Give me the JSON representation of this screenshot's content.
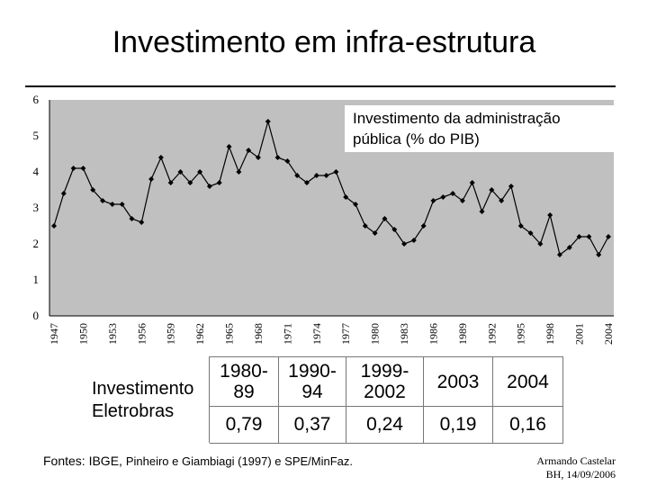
{
  "page": {
    "title": "Investimento em infra-estrutura"
  },
  "chart_data": {
    "type": "line",
    "title": "",
    "legend_text_line1": "Investimento da administração",
    "legend_text_line2": "pública (% do PIB)",
    "legend_placement": "top-right",
    "xlabel": "",
    "ylabel": "",
    "ylim": [
      0,
      6
    ],
    "yticks": [
      "0",
      "1",
      "2",
      "3",
      "4",
      "5",
      "6"
    ],
    "xticks": [
      "1947",
      "1950",
      "1953",
      "1956",
      "1959",
      "1962",
      "1965",
      "1968",
      "1971",
      "1974",
      "1977",
      "1980",
      "1983",
      "1986",
      "1989",
      "1992",
      "1995",
      "1998",
      "2001",
      "2004"
    ],
    "grid": false,
    "plot_background": "#c0c0c0",
    "line_color": "#000000",
    "x": [
      1947,
      1948,
      1949,
      1950,
      1951,
      1952,
      1953,
      1954,
      1955,
      1956,
      1957,
      1958,
      1959,
      1960,
      1961,
      1962,
      1963,
      1964,
      1965,
      1966,
      1967,
      1968,
      1969,
      1970,
      1971,
      1972,
      1973,
      1974,
      1975,
      1976,
      1977,
      1978,
      1979,
      1980,
      1981,
      1982,
      1983,
      1984,
      1985,
      1986,
      1987,
      1988,
      1989,
      1990,
      1991,
      1992,
      1993,
      1994,
      1995,
      1996,
      1997,
      1998,
      1999,
      2000,
      2001,
      2002,
      2003,
      2004
    ],
    "series": [
      {
        "values": [
          2.5,
          3.4,
          4.1,
          4.1,
          3.5,
          3.2,
          3.1,
          3.1,
          2.7,
          2.6,
          3.8,
          4.4,
          3.7,
          4.0,
          3.7,
          4.0,
          3.6,
          3.7,
          4.7,
          4.0,
          4.6,
          4.4,
          5.4,
          4.4,
          4.3,
          3.9,
          3.7,
          3.9,
          3.9,
          4.0,
          3.3,
          3.1,
          2.5,
          2.3,
          2.7,
          2.4,
          2.0,
          2.1,
          2.5,
          3.2,
          3.3,
          3.4,
          3.2,
          3.7,
          2.9,
          3.5,
          3.2,
          3.6,
          2.5,
          2.3,
          2.0,
          2.8,
          1.7,
          1.9,
          2.2,
          2.2,
          1.7,
          2.2
        ]
      }
    ]
  },
  "table": {
    "row_label_line1": "Investimento",
    "row_label_line2": "Eletrobras",
    "columns": [
      {
        "line1": "1980-",
        "line2": "89",
        "value": "0,79"
      },
      {
        "line1": "1990-",
        "line2": "94",
        "value": "0,37"
      },
      {
        "line1": "1999-",
        "line2": "2002",
        "value": "0,24"
      },
      {
        "line1": "2003",
        "line2": "",
        "value": "0,19"
      },
      {
        "line1": "2004",
        "line2": "",
        "value": "0,16"
      }
    ]
  },
  "footer": {
    "sources_prefix": "Fontes: IBGE, ",
    "sources_rest": "Pinheiro e Giambiagi (1997) e SPE/MinFaz.",
    "author_name": "Armando Castelar",
    "author_place_date": "BH, 14/09/2006"
  }
}
